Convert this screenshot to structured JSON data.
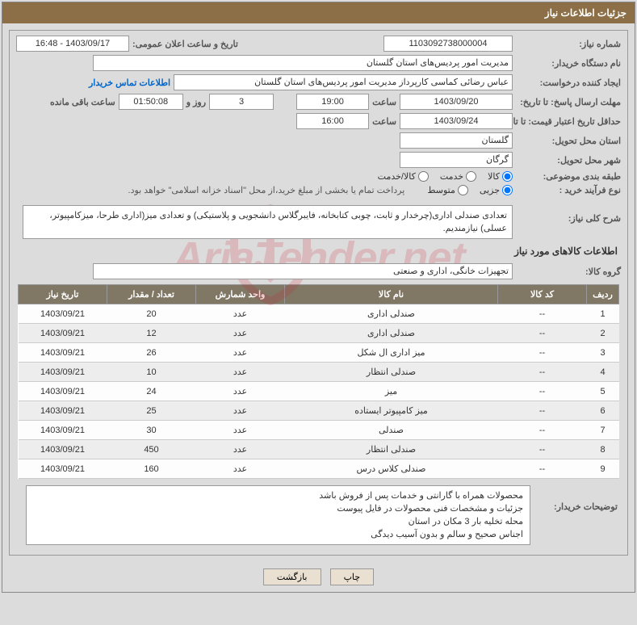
{
  "header": {
    "title": "جزئیات اطلاعات نیاز"
  },
  "fields": {
    "need_number_label": "شماره نیاز:",
    "need_number": "1103092738000004",
    "announce_datetime_label": "تاریخ و ساعت اعلان عمومی:",
    "announce_datetime": "1403/09/17 - 16:48",
    "buyer_org_label": "نام دستگاه خریدار:",
    "buyer_org": "مدیریت امور پردیس‌های استان گلستان",
    "requester_label": "ایجاد کننده درخواست:",
    "requester": "عباس رضائی کماسی کارپرداز مدیریت امور پردیس‌های استان گلستان",
    "contact_link": "اطلاعات تماس خریدار",
    "reply_deadline_label": "مهلت ارسال پاسخ: تا تاریخ:",
    "reply_deadline_date": "1403/09/20",
    "time_label": "ساعت",
    "reply_deadline_time": "19:00",
    "days_and_label": "روز و",
    "countdown_days": "3",
    "countdown_time": "01:50:08",
    "remaining_label": "ساعت باقی مانده",
    "price_valid_label": "حداقل تاریخ اعتبار قیمت: تا تاریخ:",
    "price_valid_date": "1403/09/24",
    "price_valid_time": "16:00",
    "province_label": "استان محل تحویل:",
    "province": "گلستان",
    "city_label": "شهر محل تحویل:",
    "city": "گرگان",
    "subject_class_label": "طبقه بندی موضوعی:",
    "radio_goods": "کالا",
    "radio_service": "خدمت",
    "radio_goods_service": "کالا/خدمت",
    "purchase_type_label": "نوع فرآیند خرید :",
    "radio_partial": "جزیی",
    "radio_medium": "متوسط",
    "payment_note": "پرداخت تمام یا بخشی از مبلغ خرید،از محل \"اسناد خزانه اسلامی\" خواهد بود.",
    "general_desc_label": "شرح کلی نیاز:",
    "general_desc": "تعدادی صندلی اداری(چرخدار و ثابت، چوبی کتابخانه، فایبرگلاس دانشجویی و پلاستیکی) و تعدادی میز(اداری طرحا، میزکامپیوتر، عسلی) نیازمندیم.",
    "goods_info_title": "اطلاعات کالاهای مورد نیاز",
    "goods_group_label": "گروه کالا:",
    "goods_group": "تجهیزات خانگی، اداری و صنعتی",
    "buyer_notes_label": "توضیحات خریدار:",
    "buyer_notes_lines": [
      "محصولات همراه با گارانتی و خدمات پس از فروش باشد",
      "جزئیات و مشخصات فنی محصولات در فایل پیوست",
      "محله تخلیه بار 3 مکان در استان",
      "اجناس صحیح و سالم و بدون آسیب دیدگی"
    ]
  },
  "table": {
    "columns": [
      "ردیف",
      "کد کالا",
      "نام کالا",
      "واحد شمارش",
      "تعداد / مقدار",
      "تاریخ نیاز"
    ],
    "col_widths": [
      "40px",
      "110px",
      "auto",
      "110px",
      "110px",
      "110px"
    ],
    "header_bg": "#807765",
    "rows": [
      [
        "1",
        "--",
        "صندلی اداری",
        "عدد",
        "20",
        "1403/09/21"
      ],
      [
        "2",
        "--",
        "صندلی اداری",
        "عدد",
        "12",
        "1403/09/21"
      ],
      [
        "3",
        "--",
        "میز اداری ال شکل",
        "عدد",
        "26",
        "1403/09/21"
      ],
      [
        "4",
        "--",
        "صندلی انتظار",
        "عدد",
        "10",
        "1403/09/21"
      ],
      [
        "5",
        "--",
        "میز",
        "عدد",
        "24",
        "1403/09/21"
      ],
      [
        "6",
        "--",
        "میز کامپیوتر ایستاده",
        "عدد",
        "25",
        "1403/09/21"
      ],
      [
        "7",
        "--",
        "صندلی",
        "عدد",
        "30",
        "1403/09/21"
      ],
      [
        "8",
        "--",
        "صندلی انتظار",
        "عدد",
        "450",
        "1403/09/21"
      ],
      [
        "9",
        "--",
        "صندلی کلاس درس",
        "عدد",
        "160",
        "1403/09/21"
      ]
    ]
  },
  "buttons": {
    "print": "چاپ",
    "back": "بازگشت"
  },
  "watermark": {
    "text_pre": "AriaTender",
    "text_hl": ".net"
  },
  "colors": {
    "header_bg": "#8c6f47",
    "page_bg": "#dcdcdc",
    "th_bg": "#807765",
    "link": "#0066cc"
  }
}
